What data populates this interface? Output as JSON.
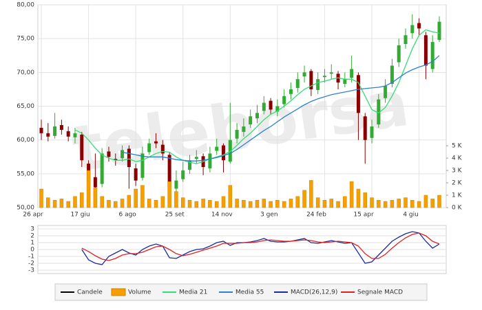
{
  "chart_data": [
    {
      "type": "candlestick",
      "watermark": "teleborsa",
      "categories": [
        "26 apr",
        null,
        null,
        null,
        null,
        null,
        null,
        "17 giu",
        null,
        null,
        null,
        null,
        null,
        null,
        "6 ago",
        null,
        null,
        null,
        null,
        null,
        null,
        "25 set",
        null,
        null,
        null,
        null,
        null,
        null,
        "14 nov",
        null,
        null,
        null,
        null,
        null,
        null,
        "3 gen",
        null,
        null,
        null,
        null,
        null,
        null,
        "24 feb",
        null,
        null,
        null,
        null,
        null,
        null,
        "15 apr",
        null,
        null,
        null,
        null,
        null,
        null,
        "4 giu",
        null,
        null,
        null
      ],
      "ylim": [
        50,
        80
      ],
      "yticks": [
        {
          "value": 50,
          "label": "50,00"
        },
        {
          "value": 55,
          "label": "55,00"
        },
        {
          "value": 60,
          "label": "60,00"
        },
        {
          "value": 65,
          "label": "65,00"
        },
        {
          "value": 70,
          "label": "70,00"
        },
        {
          "value": 75,
          "label": "75,00"
        },
        {
          "value": 80,
          "label": "80,00"
        }
      ],
      "y2lim": [
        0,
        16400
      ],
      "y2ticks": [
        {
          "value": 0,
          "label": "0 K"
        },
        {
          "value": 1000,
          "label": "1 K"
        },
        {
          "value": 2000,
          "label": "2 K"
        },
        {
          "value": 3000,
          "label": "3 K"
        },
        {
          "value": 4000,
          "label": "4 K"
        },
        {
          "value": 5000,
          "label": "5 K"
        }
      ],
      "grid": true,
      "series": [
        {
          "name": "Candele",
          "color": "#000000",
          "up_color": "#33aa33",
          "down_color": "#8b0000",
          "open": [
            61.8,
            61,
            60.6,
            62.2,
            61.3,
            60.4,
            60.8,
            56.5,
            54.5,
            53.5,
            58.3,
            57.2,
            57.3,
            58.7,
            55.8,
            54.4,
            58.2,
            59.8,
            59.3,
            57.8,
            52.8,
            54.2,
            55.6,
            57.2,
            57.6,
            55.8,
            58.4,
            59.2,
            56.8,
            60.2,
            61.2,
            62.3,
            63.2,
            64.3,
            65.8,
            64.2,
            65.3,
            66.8,
            67.7,
            69.4,
            70.2,
            67.4,
            69.3,
            69.8,
            69.8,
            68.3,
            69.2,
            69.6,
            63.5,
            60.3,
            62.3,
            66.2,
            68.3,
            71.5,
            74.2,
            75.8,
            77.3,
            75.5,
            70.5,
            74.8
          ],
          "high": [
            63,
            62.5,
            64,
            63,
            62,
            61.8,
            61.2,
            57,
            58,
            58.8,
            59,
            58,
            59.2,
            59.2,
            56.5,
            59,
            60.2,
            61,
            60,
            58.2,
            55.5,
            56.8,
            57.8,
            58.5,
            58,
            59,
            60.2,
            59.5,
            65.5,
            62.5,
            63.2,
            64.5,
            65.2,
            66.5,
            66.2,
            66,
            67.5,
            68.5,
            70,
            71,
            70.5,
            70,
            70.5,
            71.2,
            70.2,
            70,
            72.5,
            70,
            64,
            63,
            66.8,
            69,
            72,
            75,
            76.5,
            78.6,
            78,
            76,
            75.5,
            78.3
          ],
          "low": [
            60,
            59.8,
            60.2,
            60.8,
            59.8,
            59.5,
            56,
            51.5,
            51.8,
            53,
            56.8,
            56.2,
            56.8,
            52.8,
            53.2,
            54,
            57.8,
            58.8,
            57,
            50.8,
            52,
            53.8,
            55,
            56.5,
            54.8,
            55.2,
            57.8,
            55.2,
            56.5,
            59.5,
            60.5,
            61.8,
            62.5,
            63.8,
            63.8,
            63.5,
            64.8,
            66,
            67,
            68.5,
            66.5,
            66.8,
            68.5,
            69,
            67.5,
            67.8,
            68.5,
            60,
            56.5,
            59.5,
            61.8,
            65.5,
            67.8,
            70.8,
            73.5,
            75,
            75.5,
            69,
            70,
            74.5
          ],
          "close": [
            61,
            60.5,
            62,
            61.5,
            60.5,
            61,
            57,
            54,
            53,
            58,
            57.5,
            57,
            58.5,
            56,
            54,
            58,
            59.5,
            59.5,
            58,
            53,
            54,
            55.5,
            57,
            57.5,
            56,
            58,
            59,
            57,
            60,
            61.5,
            62,
            63.5,
            64,
            65.5,
            64.5,
            65,
            66.5,
            67.5,
            69,
            70,
            67.5,
            69,
            69.5,
            70,
            68.5,
            69,
            70.5,
            64,
            60,
            62,
            66,
            68,
            71,
            74,
            75.5,
            77,
            76.5,
            71,
            74.5,
            77.5
          ]
        },
        {
          "name": "Volume",
          "color": "#f5a000",
          "axis": "y2",
          "values": [
            1500,
            800,
            600,
            700,
            500,
            900,
            1200,
            3000,
            1600,
            900,
            600,
            500,
            700,
            1000,
            1500,
            1800,
            700,
            600,
            900,
            2100,
            1300,
            800,
            600,
            500,
            700,
            600,
            500,
            900,
            1800,
            700,
            600,
            500,
            600,
            700,
            500,
            600,
            500,
            700,
            900,
            1400,
            2200,
            800,
            600,
            700,
            500,
            900,
            2100,
            1500,
            1200,
            800,
            600,
            500,
            600,
            700,
            800,
            600,
            500,
            1000,
            700,
            1000
          ]
        },
        {
          "name": "Media 21",
          "color": "#33dd77",
          "values": [
            null,
            null,
            null,
            null,
            null,
            61.5,
            61,
            60,
            58.8,
            57.8,
            57.3,
            57,
            57,
            57.2,
            56.8,
            57,
            57.5,
            58,
            58.3,
            58.2,
            57.5,
            57,
            56.7,
            56.5,
            56.8,
            57.2,
            57.5,
            57.8,
            58.3,
            59.2,
            60.2,
            61,
            62,
            63,
            63.8,
            64.3,
            65,
            65.8,
            66.7,
            67.5,
            68,
            68.5,
            68.7,
            69,
            69.2,
            69,
            69,
            68.5,
            66.5,
            64.5,
            64,
            64.8,
            66.5,
            68.5,
            71,
            73.5,
            75.5,
            76.3,
            76,
            75.8
          ]
        },
        {
          "name": "Media 55",
          "color": "#2a80d5",
          "values": [
            null,
            null,
            null,
            null,
            null,
            null,
            null,
            null,
            null,
            null,
            null,
            null,
            58.2,
            58,
            57.8,
            57.6,
            57.5,
            57.5,
            57.5,
            57.3,
            57.1,
            57,
            56.9,
            56.9,
            57,
            57.2,
            57.4,
            57.7,
            58,
            58.6,
            59.3,
            60,
            60.7,
            61.4,
            62,
            62.7,
            63.4,
            64,
            64.6,
            65.2,
            65.7,
            66.1,
            66.4,
            66.7,
            66.9,
            67.1,
            67.3,
            67.5,
            67.6,
            67.7,
            67.8,
            68,
            68.5,
            69.2,
            69.9,
            70.4,
            70.8,
            71.1,
            71.6,
            72.5
          ]
        }
      ]
    },
    {
      "type": "line",
      "ylim": [
        -3.5,
        3.5
      ],
      "yticks": [
        -3,
        -2,
        -1,
        0,
        1,
        2,
        3
      ],
      "grid": true,
      "series": [
        {
          "name": "MACD(26,12,9)",
          "color": "#1a2aa0",
          "values": [
            null,
            null,
            null,
            null,
            null,
            null,
            0,
            -1.5,
            -2,
            -2.2,
            -1,
            -0.5,
            0,
            -0.5,
            -0.8,
            0,
            0.5,
            0.8,
            0.5,
            -1.2,
            -1.3,
            -0.8,
            -0.3,
            0,
            0.1,
            0.5,
            1,
            1.2,
            0.6,
            1,
            1,
            1.1,
            1.3,
            1.6,
            1.2,
            1.1,
            1.1,
            1.2,
            1.4,
            1.6,
            1,
            0.9,
            1.1,
            1.3,
            1.1,
            0.9,
            1,
            -0.5,
            -2,
            -1.8,
            -0.8,
            0.2,
            1.2,
            1.8,
            2.3,
            2.6,
            2.4,
            1.2,
            0.2,
            0.8
          ]
        },
        {
          "name": "Segnale MACD",
          "color": "#e02020",
          "values": [
            null,
            null,
            null,
            null,
            null,
            null,
            0.2,
            -0.3,
            -0.9,
            -1.4,
            -1.6,
            -1.3,
            -0.8,
            -0.6,
            -0.6,
            -0.4,
            0,
            0.4,
            0.5,
            0,
            -0.6,
            -0.9,
            -0.7,
            -0.4,
            -0.1,
            0.2,
            0.5,
            0.9,
            0.9,
            0.9,
            1,
            1,
            1.1,
            1.3,
            1.4,
            1.3,
            1.2,
            1.2,
            1.3,
            1.4,
            1.3,
            1.1,
            1,
            1.1,
            1.2,
            1.1,
            1,
            0.5,
            -0.6,
            -1.3,
            -1.3,
            -0.7,
            0.2,
            1,
            1.7,
            2.2,
            2.4,
            2,
            1.2,
            0.8
          ]
        }
      ]
    }
  ]
}
